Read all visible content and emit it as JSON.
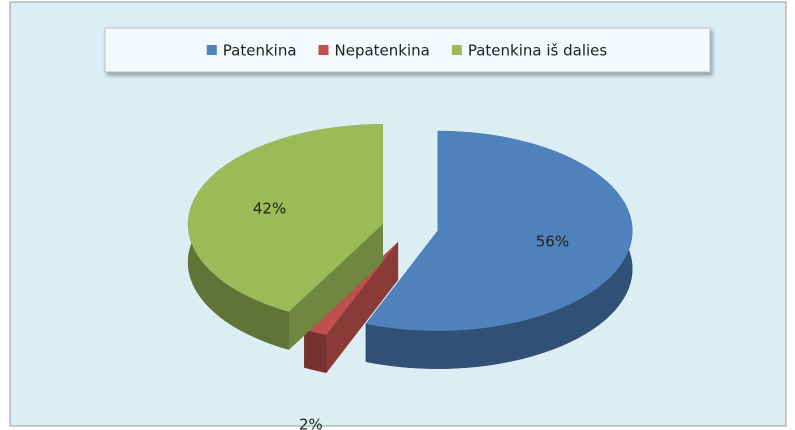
{
  "chart_data": {
    "type": "pie",
    "categories": [
      "Patenkina",
      "Nepatenkina",
      "Patenkina iš dalies"
    ],
    "values": [
      56,
      2,
      42
    ],
    "value_labels": [
      "56%",
      "2%",
      "42%"
    ],
    "colors": [
      "#4f81bd",
      "#c0504d",
      "#9bbb59"
    ],
    "legend": "top"
  }
}
